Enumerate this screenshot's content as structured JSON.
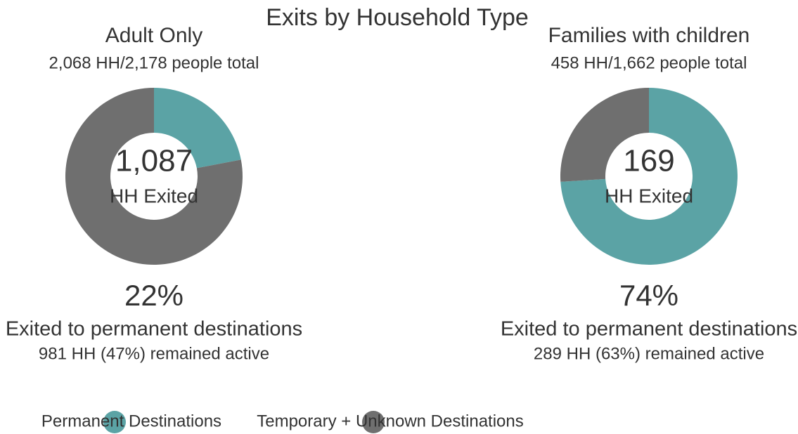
{
  "title": "Exits by Household Type",
  "chart_data": [
    {
      "type": "donut",
      "title": "Adult Only",
      "subtitle": "2,068 HH/2,178 people total",
      "categories": [
        "Permanent Destinations",
        "Temporary + Unknown Destinations"
      ],
      "values": [
        22,
        78
      ],
      "value_labels": [
        "22%",
        null
      ],
      "colors": [
        "#5ba3a5",
        "#6f6f6f"
      ],
      "center_value": {
        "value": 1087,
        "label": "1,087"
      },
      "center_text": "HH Exited",
      "caption": "Exited to permanent destinations",
      "note": "981 HH (47%) remained active"
    },
    {
      "type": "donut",
      "title": "Families with children",
      "subtitle": "458 HH/1,662 people total",
      "categories": [
        "Permanent Destinations",
        "Temporary + Unknown Destinations"
      ],
      "values": [
        74,
        26
      ],
      "value_labels": [
        "74%",
        null
      ],
      "colors": [
        "#5ba3a5",
        "#6f6f6f"
      ],
      "center_value": {
        "value": 169,
        "label": "169"
      },
      "center_text": "HH Exited",
      "caption": "Exited to permanent destinations",
      "note": "289 HH (63%) remained active"
    }
  ]
}
